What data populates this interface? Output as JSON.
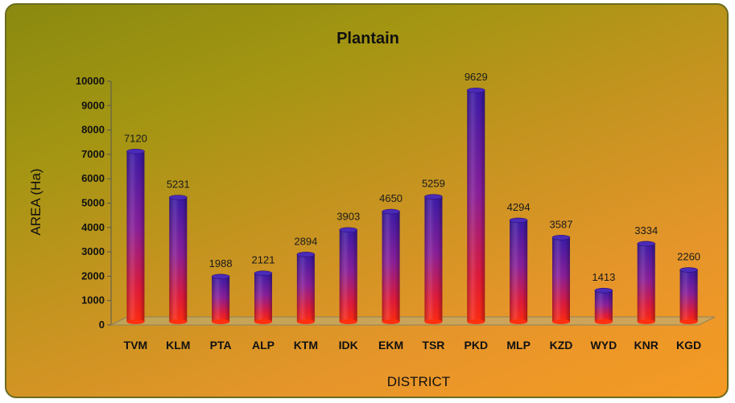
{
  "chart_data": {
    "type": "bar",
    "title": "Plantain",
    "xlabel": "DISTRICT",
    "ylabel": "AREA (Ha)",
    "categories": [
      "TVM",
      "KLM",
      "PTA",
      "ALP",
      "KTM",
      "IDK",
      "EKM",
      "TSR",
      "PKD",
      "MLP",
      "KZD",
      "WYD",
      "KNR",
      "KGD"
    ],
    "values": [
      7120,
      5231,
      1988,
      2121,
      2894,
      3903,
      4650,
      5259,
      9629,
      4294,
      3587,
      1413,
      3334,
      2260
    ],
    "ylim": [
      0,
      10000
    ],
    "yticks": [
      0,
      1000,
      2000,
      3000,
      4000,
      5000,
      6000,
      7000,
      8000,
      9000,
      10000
    ],
    "data_labels": true,
    "grid": false,
    "legend": "none",
    "colors": {
      "bar_top": "#3a1aa8",
      "bar_mid": "#a0208e",
      "bar_bottom": "#ff1a1a",
      "floor": "#b8b080"
    }
  }
}
